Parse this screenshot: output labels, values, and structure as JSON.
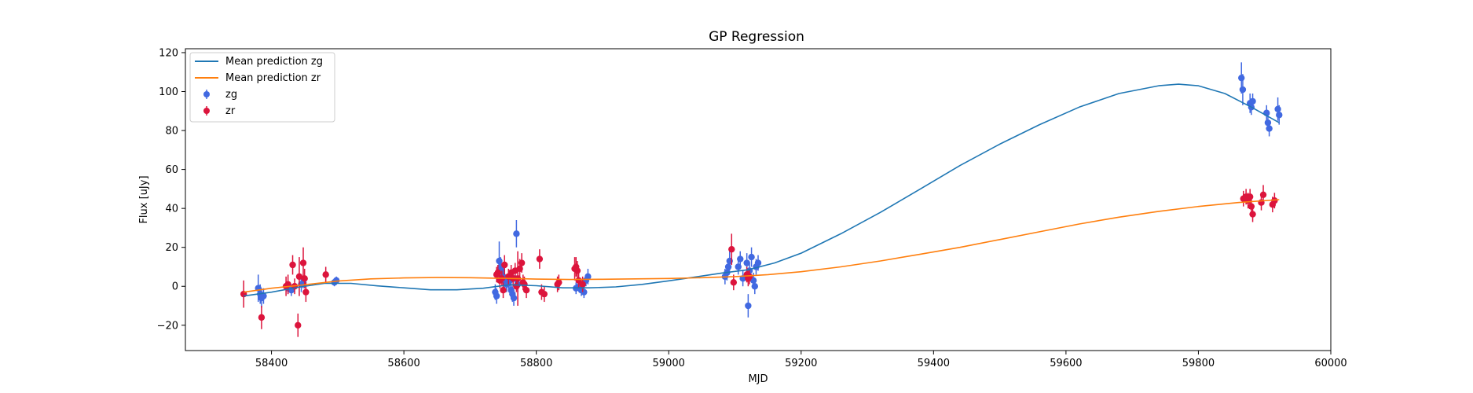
{
  "chart_data": {
    "type": "scatter",
    "title": "GP Regression",
    "xlabel": "MJD",
    "ylabel": "Flux [uJy]",
    "xlim": [
      58270,
      60000
    ],
    "ylim": [
      -33,
      122
    ],
    "xticks": [
      58400,
      58600,
      58800,
      59000,
      59200,
      59400,
      59600,
      59800,
      60000
    ],
    "yticks": [
      -20,
      0,
      20,
      40,
      60,
      80,
      100,
      120
    ],
    "grid": false,
    "legend_position": "top-left",
    "lines": [
      {
        "name": "Mean prediction zg",
        "color": "#1f77b4",
        "x": [
          58358,
          58400,
          58440,
          58480,
          58520,
          58560,
          58600,
          58640,
          58680,
          58720,
          58760,
          58800,
          58840,
          58880,
          58920,
          58960,
          59000,
          59040,
          59080,
          59120,
          59160,
          59200,
          59260,
          59320,
          59380,
          59440,
          59500,
          59560,
          59620,
          59680,
          59740,
          59770,
          59800,
          59840,
          59880,
          59922
        ],
        "y": [
          -5,
          -3,
          -0.5,
          1.5,
          1.5,
          0.2,
          -0.8,
          -1.8,
          -1.8,
          -1,
          0.8,
          0.3,
          -0.8,
          -0.8,
          -0.3,
          1,
          2.8,
          4.8,
          6.8,
          8.5,
          12,
          17,
          27,
          38,
          50,
          62,
          73,
          83,
          92,
          99,
          103,
          103.8,
          103,
          99,
          92,
          84
        ]
      },
      {
        "name": "Mean prediction zr",
        "color": "#ff7f0e",
        "x": [
          58358,
          58400,
          58450,
          58500,
          58550,
          58600,
          58650,
          58700,
          58750,
          58800,
          58850,
          58900,
          58950,
          59000,
          59050,
          59100,
          59150,
          59200,
          59260,
          59320,
          59380,
          59440,
          59500,
          59560,
          59620,
          59680,
          59740,
          59800,
          59860,
          59922
        ],
        "y": [
          -3,
          -1,
          0.8,
          2.7,
          3.8,
          4.3,
          4.5,
          4.4,
          4.1,
          3.7,
          3.5,
          3.6,
          3.8,
          4,
          4.4,
          5,
          6,
          7.5,
          10,
          13,
          16.5,
          20,
          24,
          28,
          32,
          35.5,
          38.5,
          41,
          43,
          44.5
        ]
      }
    ],
    "series": [
      {
        "name": "zg",
        "color": "#4169e1",
        "points": [
          [
            58380,
            -1,
            7
          ],
          [
            58383,
            -4,
            5
          ],
          [
            58385,
            -6,
            5
          ],
          [
            58388,
            -5,
            4
          ],
          [
            58425,
            -1,
            3
          ],
          [
            58430,
            -2,
            3
          ],
          [
            58445,
            1,
            4
          ],
          [
            58448,
            2,
            3
          ],
          [
            58495,
            2,
            2
          ],
          [
            58498,
            3,
            2
          ],
          [
            58738,
            -3,
            4
          ],
          [
            58740,
            -5,
            4
          ],
          [
            58744,
            13,
            10
          ],
          [
            58746,
            10,
            5
          ],
          [
            58748,
            8,
            4
          ],
          [
            58750,
            5,
            4
          ],
          [
            58752,
            3,
            4
          ],
          [
            58755,
            1,
            4
          ],
          [
            58758,
            2,
            4
          ],
          [
            58760,
            3,
            4
          ],
          [
            58762,
            -2,
            4
          ],
          [
            58764,
            -4,
            4
          ],
          [
            58766,
            -6,
            4
          ],
          [
            58768,
            4,
            4
          ],
          [
            58770,
            27,
            7
          ],
          [
            58772,
            1,
            4
          ],
          [
            58860,
            -1,
            3
          ],
          [
            58865,
            0,
            3
          ],
          [
            58868,
            -2,
            3
          ],
          [
            58872,
            -3,
            3
          ],
          [
            58875,
            3,
            3
          ],
          [
            58878,
            5,
            4
          ],
          [
            59085,
            5,
            4
          ],
          [
            59088,
            7,
            4
          ],
          [
            59090,
            10,
            4
          ],
          [
            59092,
            13,
            5
          ],
          [
            59105,
            10,
            4
          ],
          [
            59108,
            14,
            4
          ],
          [
            59112,
            4,
            4
          ],
          [
            59118,
            12,
            5
          ],
          [
            59120,
            -10,
            6
          ],
          [
            59122,
            8,
            4
          ],
          [
            59125,
            15,
            5
          ],
          [
            59128,
            3,
            4
          ],
          [
            59130,
            0,
            4
          ],
          [
            59132,
            10,
            4
          ],
          [
            59135,
            12,
            4
          ],
          [
            59865,
            107,
            8
          ],
          [
            59867,
            101,
            8
          ],
          [
            59878,
            94,
            5
          ],
          [
            59880,
            92,
            4
          ],
          [
            59882,
            95,
            4
          ],
          [
            59903,
            89,
            4
          ],
          [
            59905,
            84,
            4
          ],
          [
            59907,
            81,
            4
          ],
          [
            59920,
            91,
            6
          ],
          [
            59922,
            88,
            5
          ]
        ]
      },
      {
        "name": "zr",
        "color": "#dc143c",
        "points": [
          [
            58358,
            -4,
            7
          ],
          [
            58385,
            -16,
            6
          ],
          [
            58422,
            0,
            5
          ],
          [
            58425,
            1,
            5
          ],
          [
            58432,
            11,
            5
          ],
          [
            58435,
            0,
            4
          ],
          [
            58440,
            -20,
            6
          ],
          [
            58442,
            5,
            10
          ],
          [
            58448,
            12,
            8
          ],
          [
            58450,
            4,
            5
          ],
          [
            58452,
            -3,
            5
          ],
          [
            58482,
            6,
            4
          ],
          [
            58740,
            6,
            4
          ],
          [
            58742,
            7,
            4
          ],
          [
            58745,
            3,
            4
          ],
          [
            58748,
            4,
            4
          ],
          [
            58750,
            -2,
            4
          ],
          [
            58752,
            11,
            5
          ],
          [
            58758,
            5,
            4
          ],
          [
            58762,
            7,
            4
          ],
          [
            58765,
            4,
            4
          ],
          [
            58768,
            8,
            4
          ],
          [
            58770,
            0,
            3
          ],
          [
            58772,
            4,
            14
          ],
          [
            58775,
            9,
            5
          ],
          [
            58778,
            12,
            5
          ],
          [
            58780,
            2,
            4
          ],
          [
            58782,
            1,
            4
          ],
          [
            58785,
            -2,
            4
          ],
          [
            58805,
            14,
            5
          ],
          [
            58808,
            -3,
            4
          ],
          [
            58812,
            -4,
            4
          ],
          [
            58832,
            1,
            4
          ],
          [
            58834,
            2,
            4
          ],
          [
            58858,
            9,
            6
          ],
          [
            58860,
            10,
            5
          ],
          [
            58862,
            8,
            5
          ],
          [
            58864,
            3,
            4
          ],
          [
            58870,
            1,
            4
          ],
          [
            59095,
            19,
            8
          ],
          [
            59098,
            2,
            4
          ],
          [
            59118,
            6,
            4
          ],
          [
            59120,
            4,
            4
          ],
          [
            59122,
            5,
            4
          ],
          [
            59868,
            45,
            4
          ],
          [
            59872,
            46,
            4
          ],
          [
            59875,
            44,
            4
          ],
          [
            59878,
            46,
            4
          ],
          [
            59880,
            41,
            4
          ],
          [
            59882,
            37,
            4
          ],
          [
            59895,
            43,
            4
          ],
          [
            59898,
            47,
            5
          ],
          [
            59912,
            42,
            4
          ],
          [
            59915,
            44,
            4
          ]
        ]
      }
    ]
  }
}
